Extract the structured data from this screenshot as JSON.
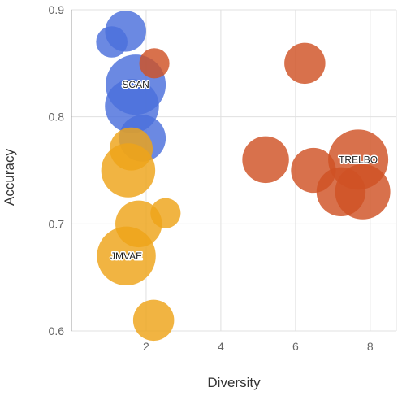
{
  "chart_data": {
    "type": "scatter",
    "xlabel": "Diversity",
    "ylabel": "Accuracy",
    "xlim": [
      0,
      8.7
    ],
    "ylim": [
      0.6,
      0.9
    ],
    "x_ticks": [
      "2",
      "4",
      "6",
      "8"
    ],
    "y_ticks": [
      "0.6",
      "0.7",
      "0.8",
      "0.9"
    ],
    "grid": true,
    "colors": {
      "blue": "#4a6fdc",
      "orange": "#eea418",
      "red": "#cf5225"
    },
    "series": [
      {
        "color": "#4a6fdc",
        "points": [
          {
            "x": 1.08,
            "y": 0.87,
            "size": 0.2
          },
          {
            "x": 1.45,
            "y": 0.88,
            "size": 0.4
          },
          {
            "x": 1.72,
            "y": 0.83,
            "size": 1.0,
            "label": "SCAN"
          },
          {
            "x": 1.62,
            "y": 0.81,
            "size": 0.78
          },
          {
            "x": 1.9,
            "y": 0.78,
            "size": 0.55
          }
        ]
      },
      {
        "color": "#eea418",
        "points": [
          {
            "x": 1.6,
            "y": 0.77,
            "size": 0.45
          },
          {
            "x": 1.52,
            "y": 0.75,
            "size": 0.78
          },
          {
            "x": 1.8,
            "y": 0.7,
            "size": 0.55
          },
          {
            "x": 2.52,
            "y": 0.71,
            "size": 0.18
          },
          {
            "x": 1.47,
            "y": 0.67,
            "size": 0.95,
            "label": "JMVAE"
          },
          {
            "x": 2.2,
            "y": 0.61,
            "size": 0.4
          }
        ]
      },
      {
        "color": "#cf5225",
        "points": [
          {
            "x": 2.22,
            "y": 0.85,
            "size": 0.18
          },
          {
            "x": 6.25,
            "y": 0.85,
            "size": 0.4
          },
          {
            "x": 5.2,
            "y": 0.76,
            "size": 0.55
          },
          {
            "x": 6.48,
            "y": 0.75,
            "size": 0.5
          },
          {
            "x": 7.68,
            "y": 0.76,
            "size": 1.0,
            "label": "TRELBO"
          },
          {
            "x": 7.22,
            "y": 0.73,
            "size": 0.62
          },
          {
            "x": 7.8,
            "y": 0.73,
            "size": 0.82
          }
        ]
      }
    ]
  }
}
